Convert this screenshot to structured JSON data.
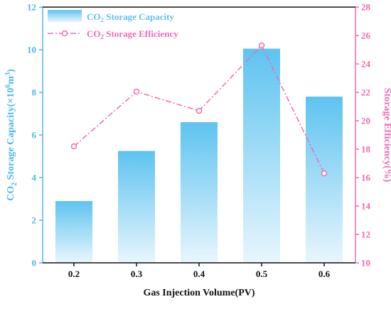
{
  "chart_data": {
    "type": "bar",
    "categories": [
      "0.2",
      "0.3",
      "0.4",
      "0.5",
      "0.6"
    ],
    "xlabel": "Gas Injection Volume(PV)",
    "ylabel": {
      "prefix": "CO",
      "sub": "2",
      "mid": " Storage Capacity(×10",
      "sup1": "6",
      "mid2": "m",
      "sup2": "3",
      "suffix": ")"
    },
    "y2label": "Storage Efficiency(%)",
    "ylim": [
      0,
      12
    ],
    "y2lim": [
      10,
      28
    ],
    "yticks": [
      "0",
      "2",
      "4",
      "6",
      "8",
      "10",
      "12"
    ],
    "y2ticks": [
      "10",
      "12",
      "14",
      "16",
      "18",
      "20",
      "22",
      "24",
      "26",
      "28"
    ],
    "legend_position": "top-left",
    "series": [
      {
        "name": {
          "prefix": "CO",
          "sub": "2",
          "suffix": " Storage Capacity"
        },
        "kind": "bar",
        "axis": "left",
        "color": "#5ec3f0",
        "values": [
          2.9,
          5.25,
          6.6,
          10.05,
          7.8
        ]
      },
      {
        "name": {
          "prefix": "CO",
          "sub": "2",
          "suffix": " Storage Efficiency"
        },
        "kind": "line",
        "axis": "right",
        "color": "#f06ab4",
        "linestyle": "dash-dot",
        "values": [
          18.2,
          22.05,
          20.7,
          25.3,
          16.3
        ]
      }
    ],
    "colors": {
      "left_axis": "#4db8ea",
      "right_axis": "#f06ab4",
      "bottom_axis": "#111111"
    }
  }
}
